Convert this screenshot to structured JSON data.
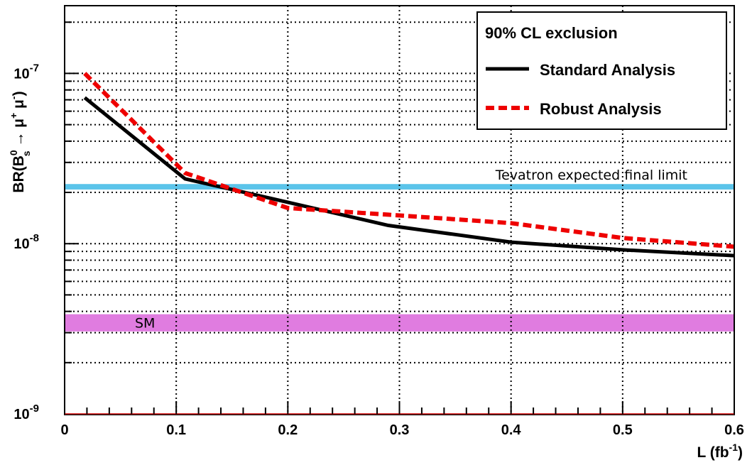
{
  "chart_data": {
    "type": "line",
    "title": "",
    "xlabel": "L (fb",
    "xlabel_sup": "-1",
    "xlabel_close": ")",
    "ylabel": {
      "prefix": "BR(B",
      "sub": "s",
      "sup": "0",
      "arrow": " → μ",
      "mu_plus_sup": "+",
      "mu": " μ",
      "mu_minus_sup": "-",
      "close": ")"
    },
    "yscale": "log",
    "xlim": [
      0,
      0.6
    ],
    "ylim": [
      1e-09,
      2.5e-07
    ],
    "grid": true,
    "x_ticks": [
      "0",
      "0.1",
      "0.2",
      "0.3",
      "0.4",
      "0.5",
      "0.6"
    ],
    "x_tick_values": [
      0,
      0.1,
      0.2,
      0.3,
      0.4,
      0.5,
      0.6
    ],
    "y_ticks": [
      {
        "value": 1e-09,
        "base": "10",
        "exp": "-9"
      },
      {
        "value": 1e-08,
        "base": "10",
        "exp": "-8"
      },
      {
        "value": 1e-07,
        "base": "10",
        "exp": "-7"
      }
    ],
    "series": [
      {
        "name": "Standard Analysis",
        "color": "#000000",
        "style": "solid",
        "x": [
          0.018,
          0.108,
          0.2,
          0.29,
          0.4,
          0.5,
          0.6
        ],
        "y": [
          7.2e-08,
          2.4e-08,
          1.75e-08,
          1.28e-08,
          1.02e-08,
          9.2e-09,
          8.5e-09
        ]
      },
      {
        "name": "Robust Analysis",
        "color": "#ee0000",
        "style": "dashed",
        "x": [
          0.018,
          0.108,
          0.2,
          0.29,
          0.4,
          0.5,
          0.6
        ],
        "y": [
          1e-07,
          2.6e-08,
          1.62e-08,
          1.48e-08,
          1.32e-08,
          1.08e-08,
          9.6e-09
        ]
      }
    ],
    "bands": [
      {
        "name": "Tevatron",
        "label": "Tevatron expected final limit",
        "ylow": 2.08e-08,
        "yhigh": 2.24e-08,
        "color": "#5bc4ea"
      },
      {
        "name": "SM",
        "label": "SM",
        "ylow": 3.05e-09,
        "yhigh": 3.85e-09,
        "color": "#e07ce0"
      }
    ],
    "legend": {
      "position": "top-right",
      "title": "90% CL exclusion",
      "entries": [
        "Standard Analysis",
        "Robust Analysis"
      ]
    }
  }
}
